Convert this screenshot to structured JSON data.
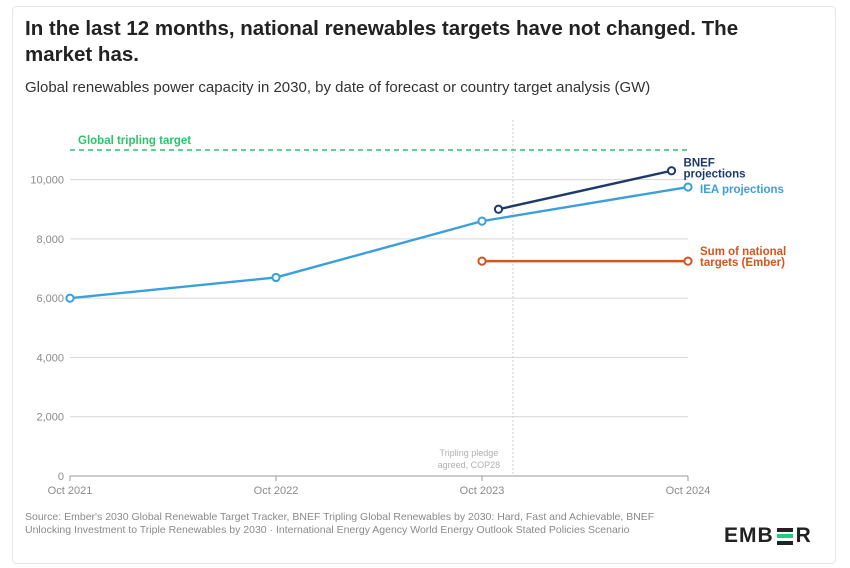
{
  "title": "In the last 12 months, national renewables targets have not changed. The market has.",
  "subtitle": "Global renewables power capacity in 2030, by date of forecast or country target analysis (GW)",
  "source": "Source: Ember's 2030 Global Renewable Target Tracker, BNEF Tripling Global Renewables by 2030: Hard, Fast and Achievable, BNEF Unlocking Investment to Triple Renewables by 2030 · International Energy Agency World Energy Outlook Stated Policies Scenario",
  "logo": {
    "text": "EMBER",
    "left": "EMB",
    "right": "R"
  },
  "chart_data": {
    "type": "line",
    "title": "Global renewables power capacity in 2030, by date of forecast or country target analysis (GW)",
    "xlabel": "",
    "ylabel": "GW",
    "ylim": [
      0,
      11000
    ],
    "yticks": [
      0,
      2000,
      4000,
      6000,
      8000,
      10000
    ],
    "ytick_labels": [
      "0",
      "2,000",
      "4,000",
      "6,000",
      "8,000",
      "10,000"
    ],
    "x_dates": [
      "Oct 2021",
      "Oct 2022",
      "Oct 2023",
      "Oct 2024"
    ],
    "series": [
      {
        "name": "IEA projections",
        "color": "#3aa0dc",
        "points": [
          [
            0,
            6000
          ],
          [
            1,
            6700
          ],
          [
            2,
            8600
          ],
          [
            3,
            9750
          ]
        ]
      },
      {
        "name": "BNEF projections",
        "color": "#1d3a6b",
        "points": [
          [
            2.08,
            9000
          ],
          [
            2.92,
            10300
          ]
        ]
      },
      {
        "name": "Sum of national targets (Ember)",
        "color": "#d4551c",
        "points": [
          [
            2,
            7250
          ],
          [
            3,
            7250
          ]
        ]
      }
    ],
    "reference_lines": [
      {
        "name": "Global tripling target",
        "value": 11000,
        "color": "#2ec26a",
        "style": "dashed",
        "label": "Global tripling target"
      }
    ],
    "vertical_markers": [
      {
        "x": 2.15,
        "label_lines": [
          "Tripling pledge",
          "agreed, COP28"
        ],
        "color": "#cfcfcf"
      }
    ],
    "annotations": [
      {
        "series": "BNEF projections",
        "lines": [
          "BNEF",
          "projections"
        ],
        "color": "#1d3a6b"
      },
      {
        "series": "IEA projections",
        "lines": [
          "IEA projections"
        ],
        "color": "#3aa0dc"
      },
      {
        "series": "Sum of national targets (Ember)",
        "lines": [
          "Sum of national",
          "targets (Ember)"
        ],
        "color": "#d4551c"
      }
    ]
  }
}
